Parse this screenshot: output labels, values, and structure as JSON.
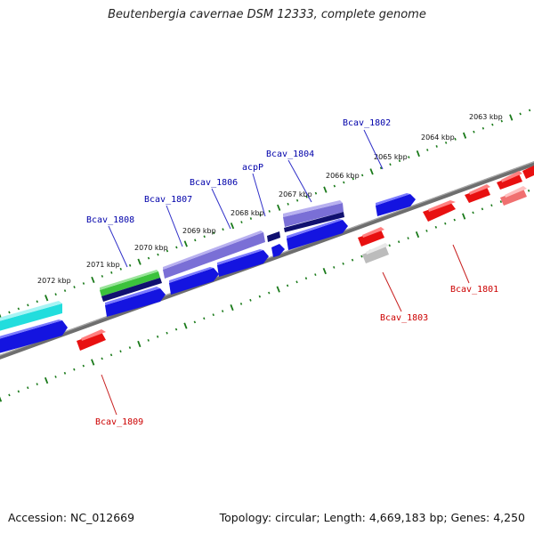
{
  "title": "Beutenbergia cavernae DSM 12333, complete genome",
  "footer": {
    "accession": "Accession: NC_012669",
    "summary": "Topology: circular; Length: 4,669,183 bp; Genes: 4,250"
  },
  "scale_labels": [
    "2063 kbp",
    "2064 kbp",
    "2065 kbp",
    "2066 kbp",
    "2067 kbp",
    "2068 kbp",
    "2069 kbp",
    "2070 kbp",
    "2071 kbp",
    "2072 kbp"
  ],
  "gene_labels": {
    "forward": [
      "Bcav_1802",
      "Bcav_1804",
      "acpP",
      "Bcav_1806",
      "Bcav_1807",
      "Bcav_1808"
    ],
    "reverse": [
      "Bcav_1801",
      "Bcav_1803",
      "Bcav_1809"
    ]
  },
  "colors": {
    "forward_gene": "#1010e0",
    "reverse_gene": "#e81010",
    "highlight_purple": "#7a6fd6",
    "rna_green": "#3cc23c",
    "cyan_feature": "#22dddd",
    "label_blue": "#0000aa",
    "label_red": "#cc0000",
    "tick_green": "#1a7a1a",
    "axis_gray": "#777777"
  }
}
